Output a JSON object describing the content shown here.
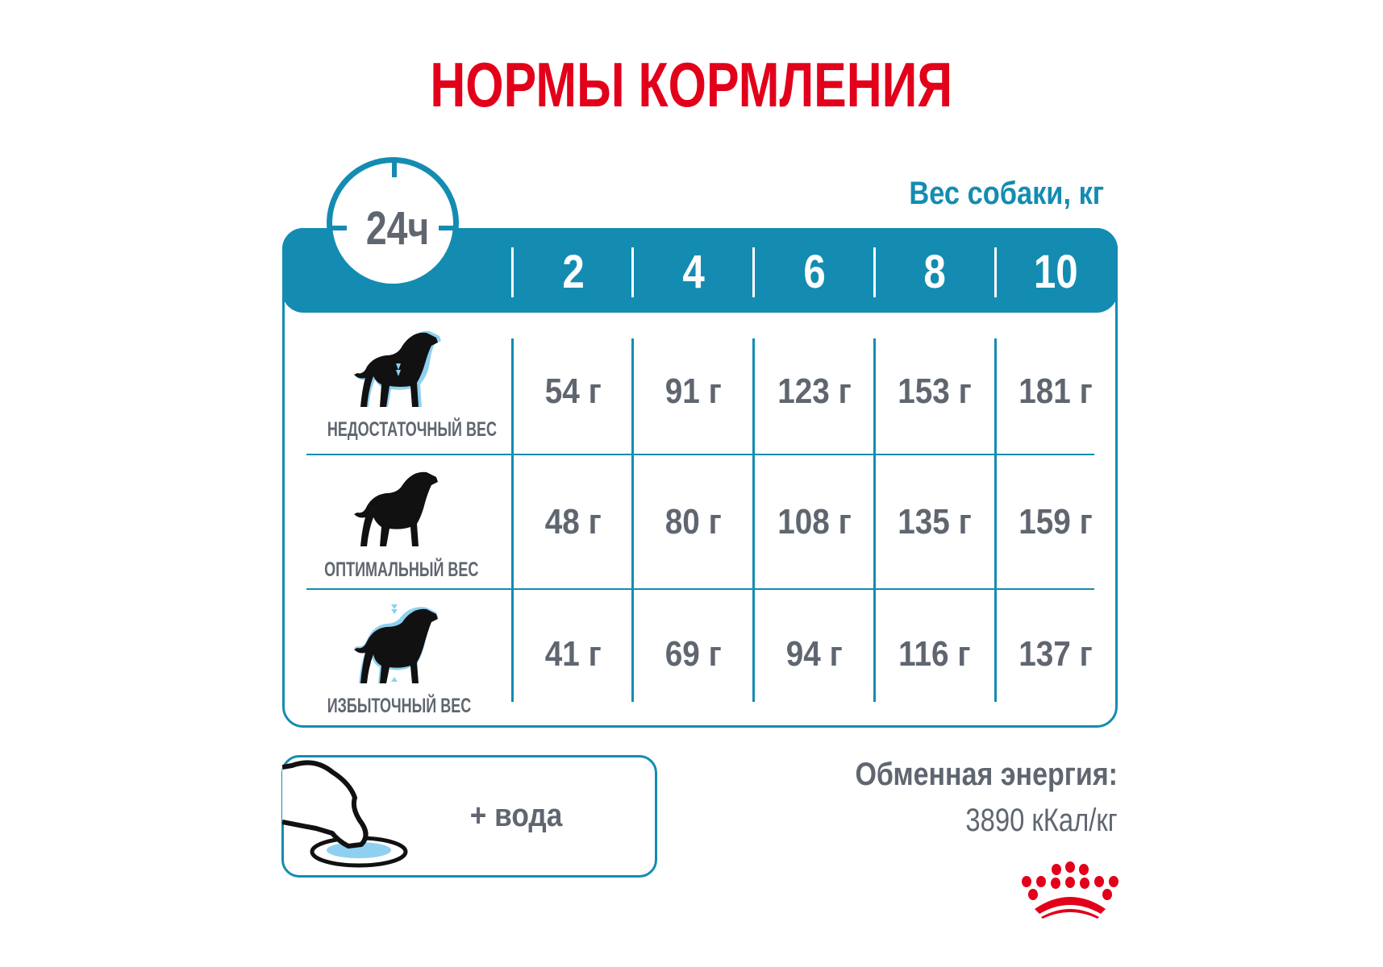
{
  "title": "НОРМЫ КОРМЛЕНИЯ",
  "table": {
    "period_label": "24ч",
    "weight_caption": "Вес собаки, кг",
    "weights": [
      "2",
      "4",
      "6",
      "8",
      "10"
    ],
    "rows": [
      {
        "label": "НЕДОСТАТОЧНЫЙ ВЕС",
        "icon": "underweight-dog-icon",
        "values": [
          "54 г",
          "91 г",
          "123 г",
          "153 г",
          "181 г"
        ]
      },
      {
        "label": "ОПТИМАЛЬНЫЙ ВЕС",
        "icon": "optimal-weight-dog-icon",
        "values": [
          "48 г",
          "80 г",
          "108 г",
          "135 г",
          "159 г"
        ]
      },
      {
        "label": "ИЗБЫТОЧНЫЙ ВЕС",
        "icon": "overweight-dog-icon",
        "values": [
          "41 г",
          "69 г",
          "94 г",
          "116 г",
          "137 г"
        ]
      }
    ]
  },
  "water": {
    "label": "+ вода",
    "icon": "dog-drinking-bowl-icon"
  },
  "energy": {
    "title": "Обменная энергия:",
    "value": "3890 кКал/кг"
  },
  "logo": {
    "name": "royal-canin-crown-logo"
  },
  "colors": {
    "accent": "#148cb1",
    "title_red": "#e2001a",
    "text_gray": "#5f6670",
    "water_blue": "#8fd0f0"
  }
}
